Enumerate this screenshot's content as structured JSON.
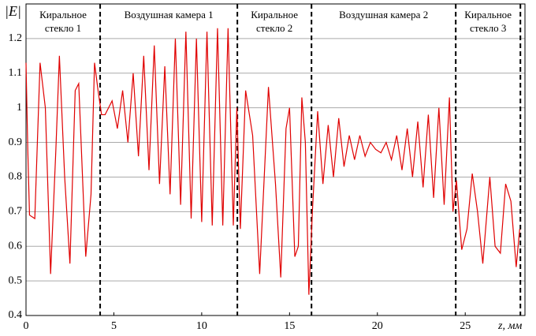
{
  "chart_data": {
    "type": "line",
    "y_label": "|E|",
    "x_label": "z, мм",
    "xlim": [
      0,
      28.4
    ],
    "ylim": [
      0.4,
      1.3
    ],
    "xticks": [
      0,
      5,
      10,
      15,
      20,
      25
    ],
    "yticks": [
      0.4,
      0.5,
      0.6,
      0.7,
      0.8,
      0.9,
      1,
      1.1,
      1.2
    ],
    "grid": "y",
    "boundaries": [
      4.22,
      12.03,
      16.25,
      24.46,
      28.14
    ],
    "regions": [
      [
        "Киральное",
        "стекло 1"
      ],
      [
        "Воздушная камера 1"
      ],
      [
        "Киральное",
        "стекло 2"
      ],
      [
        "Воздушная камера 2"
      ],
      [
        "Киральное",
        "стекло 3"
      ]
    ],
    "series": [
      {
        "color": "#e00000",
        "x": [
          0,
          0.1,
          0.2,
          0.5,
          0.8,
          1.1,
          1.4,
          1.7,
          1.9,
          2.2,
          2.5,
          2.8,
          3.0,
          3.4,
          3.7,
          3.9,
          4.1,
          4.3,
          4.5,
          4.9,
          5.2,
          5.5,
          5.8,
          6.1,
          6.4,
          6.7,
          7.0,
          7.3,
          7.6,
          7.9,
          8.2,
          8.5,
          8.8,
          9.1,
          9.4,
          9.7,
          10.0,
          10.3,
          10.6,
          10.9,
          11.2,
          11.5,
          11.8,
          12.0,
          12.2,
          12.5,
          12.9,
          13.3,
          13.8,
          14.2,
          14.5,
          14.8,
          15.0,
          15.3,
          15.5,
          15.7,
          15.9,
          16.1,
          16.3,
          16.6,
          16.9,
          17.2,
          17.5,
          17.8,
          18.1,
          18.4,
          18.7,
          19.0,
          19.3,
          19.6,
          19.9,
          20.2,
          20.5,
          20.8,
          21.1,
          21.4,
          21.7,
          22.0,
          22.3,
          22.6,
          22.9,
          23.2,
          23.5,
          23.8,
          24.1,
          24.3,
          24.5,
          24.8,
          25.1,
          25.4,
          25.7,
          26.0,
          26.4,
          26.7,
          27.0,
          27.3,
          27.6,
          27.9,
          28.1
        ],
        "values": [
          1.13,
          0.88,
          0.69,
          0.68,
          1.13,
          1.0,
          0.52,
          0.88,
          1.15,
          0.8,
          0.55,
          1.05,
          1.07,
          0.57,
          0.75,
          1.13,
          1.05,
          0.98,
          0.98,
          1.02,
          0.94,
          1.05,
          0.9,
          1.1,
          0.86,
          1.15,
          0.82,
          1.18,
          0.78,
          1.12,
          0.75,
          1.2,
          0.72,
          1.22,
          0.68,
          1.2,
          0.67,
          1.22,
          0.66,
          1.23,
          0.66,
          1.23,
          0.66,
          1.0,
          0.65,
          1.05,
          0.92,
          0.52,
          1.06,
          0.78,
          0.51,
          0.94,
          1.0,
          0.57,
          0.6,
          1.03,
          0.9,
          0.46,
          0.7,
          0.99,
          0.78,
          0.95,
          0.8,
          0.97,
          0.83,
          0.92,
          0.85,
          0.92,
          0.86,
          0.9,
          0.88,
          0.87,
          0.9,
          0.85,
          0.92,
          0.82,
          0.94,
          0.8,
          0.96,
          0.77,
          0.98,
          0.74,
          1.0,
          0.72,
          1.03,
          0.7,
          0.79,
          0.59,
          0.65,
          0.81,
          0.7,
          0.55,
          0.8,
          0.6,
          0.58,
          0.78,
          0.73,
          0.54,
          0.65
        ]
      }
    ]
  }
}
